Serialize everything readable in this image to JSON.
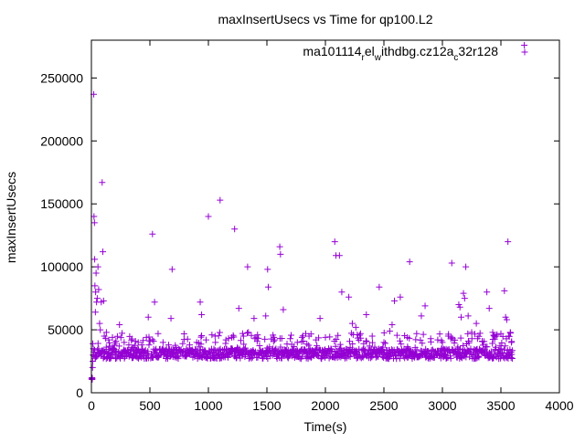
{
  "chart_data": {
    "type": "scatter",
    "title": "maxInsertUsecs vs Time for qp100.L2",
    "xlabel": "Time(s)",
    "ylabel": "maxInsertUsecs",
    "xlim": [
      0,
      4000
    ],
    "ylim": [
      0,
      280000
    ],
    "x_ticks": [
      0,
      500,
      1000,
      1500,
      2000,
      2500,
      3000,
      3500,
      4000
    ],
    "y_ticks": [
      0,
      50000,
      100000,
      150000,
      200000,
      250000
    ],
    "x_tick_labels": [
      "0",
      "500",
      "1000",
      "1500",
      "2000",
      "2500",
      "3000",
      "3500",
      "4000"
    ],
    "y_tick_labels": [
      "0",
      "50000",
      "100000",
      "150000",
      "200000",
      "250000"
    ],
    "grid": false,
    "legend_placement": "top-right",
    "marker": "+",
    "color": "#9400d3",
    "series": [
      {
        "name_parts": [
          {
            "text": "ma101114",
            "shift": "none"
          },
          {
            "text": "r",
            "shift": "sub"
          },
          {
            "text": "el",
            "shift": "none"
          },
          {
            "text": "w",
            "shift": "sub"
          },
          {
            "text": "ithdbg.cz12a",
            "shift": "none"
          },
          {
            "text": "c",
            "shift": "sub"
          },
          {
            "text": "32r128",
            "shift": "none"
          }
        ],
        "points": [
          [
            2,
            11000
          ],
          [
            4,
            12000
          ],
          [
            6,
            10500
          ],
          [
            8,
            11500
          ],
          [
            10,
            20000
          ],
          [
            12,
            25000
          ],
          [
            14,
            30000
          ],
          [
            16,
            35000
          ],
          [
            20,
            237000
          ],
          [
            22,
            140000
          ],
          [
            26,
            135000
          ],
          [
            28,
            106000
          ],
          [
            30,
            85000
          ],
          [
            34,
            64000
          ],
          [
            36,
            80000
          ],
          [
            40,
            95000
          ],
          [
            44,
            72000
          ],
          [
            50,
            75000
          ],
          [
            56,
            100000
          ],
          [
            62,
            82000
          ],
          [
            70,
            55000
          ],
          [
            76,
            50000
          ],
          [
            84,
            72000
          ],
          [
            92,
            167000
          ],
          [
            98,
            112000
          ],
          [
            104,
            73000
          ],
          [
            110,
            45000
          ],
          [
            128,
            48000
          ],
          [
            148,
            42000
          ],
          [
            180,
            44000
          ],
          [
            210,
            41000
          ],
          [
            240,
            54000
          ],
          [
            280,
            40000
          ],
          [
            320,
            38000
          ],
          [
            360,
            36000
          ],
          [
            400,
            40000
          ],
          [
            430,
            38000
          ],
          [
            470,
            44000
          ],
          [
            486,
            60000
          ],
          [
            522,
            126000
          ],
          [
            540,
            72000
          ],
          [
            570,
            47000
          ],
          [
            612,
            40000
          ],
          [
            660,
            38000
          ],
          [
            680,
            59000
          ],
          [
            690,
            98000
          ],
          [
            720,
            36000
          ],
          [
            780,
            39000
          ],
          [
            840,
            38000
          ],
          [
            900,
            40000
          ],
          [
            930,
            72000
          ],
          [
            942,
            62000
          ],
          [
            980,
            42000
          ],
          [
            1000,
            140000
          ],
          [
            1030,
            46000
          ],
          [
            1060,
            40000
          ],
          [
            1100,
            153000
          ],
          [
            1150,
            42000
          ],
          [
            1200,
            44000
          ],
          [
            1224,
            130000
          ],
          [
            1260,
            67000
          ],
          [
            1300,
            45000
          ],
          [
            1335,
            100000
          ],
          [
            1390,
            59000
          ],
          [
            1420,
            46000
          ],
          [
            1490,
            61000
          ],
          [
            1506,
            98000
          ],
          [
            1512,
            84000
          ],
          [
            1560,
            44000
          ],
          [
            1610,
            116000
          ],
          [
            1616,
            110000
          ],
          [
            1640,
            66000
          ],
          [
            1700,
            43000
          ],
          [
            1760,
            40000
          ],
          [
            1800,
            44000
          ],
          [
            1860,
            45000
          ],
          [
            1920,
            42000
          ],
          [
            1954,
            59000
          ],
          [
            2000,
            44000
          ],
          [
            2080,
            120000
          ],
          [
            2090,
            109000
          ],
          [
            2120,
            109000
          ],
          [
            2140,
            80000
          ],
          [
            2200,
            76000
          ],
          [
            2230,
            55000
          ],
          [
            2260,
            52000
          ],
          [
            2300,
            47000
          ],
          [
            2350,
            62000
          ],
          [
            2400,
            45000
          ],
          [
            2460,
            84000
          ],
          [
            2500,
            40000
          ],
          [
            2550,
            49000
          ],
          [
            2570,
            54000
          ],
          [
            2590,
            73000
          ],
          [
            2640,
            76000
          ],
          [
            2700,
            44000
          ],
          [
            2720,
            104000
          ],
          [
            2780,
            47000
          ],
          [
            2820,
            61000
          ],
          [
            2852,
            69000
          ],
          [
            2900,
            43000
          ],
          [
            2960,
            42000
          ],
          [
            3000,
            40000
          ],
          [
            3050,
            45000
          ],
          [
            3080,
            103000
          ],
          [
            3140,
            70000
          ],
          [
            3150,
            68000
          ],
          [
            3160,
            60000
          ],
          [
            3180,
            79000
          ],
          [
            3190,
            75000
          ],
          [
            3200,
            100000
          ],
          [
            3220,
            61000
          ],
          [
            3250,
            48000
          ],
          [
            3290,
            55000
          ],
          [
            3300,
            43000
          ],
          [
            3340,
            41000
          ],
          [
            3380,
            80000
          ],
          [
            3400,
            67000
          ],
          [
            3430,
            48000
          ],
          [
            3460,
            45000
          ],
          [
            3500,
            47000
          ],
          [
            3530,
            81000
          ],
          [
            3540,
            60000
          ],
          [
            3550,
            58000
          ],
          [
            3560,
            120000
          ],
          [
            3565,
            45000
          ],
          [
            3580,
            48000
          ],
          [
            3590,
            40000
          ],
          [
            3700,
            276000
          ]
        ],
        "dense_band": {
          "x_range": [
            12,
            3600
          ],
          "y_floor": 27000,
          "y_median": 31000,
          "y_ceiling": 48000
        }
      }
    ]
  }
}
